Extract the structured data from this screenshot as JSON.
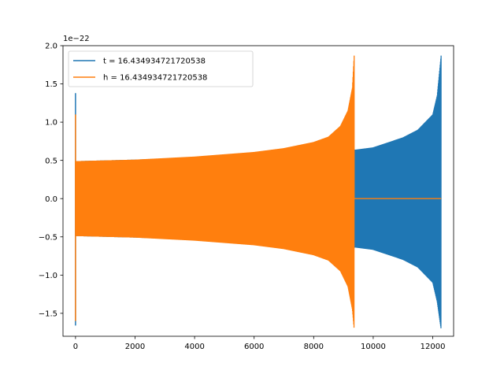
{
  "chart_data": {
    "type": "line",
    "title": "",
    "xlabel": "",
    "ylabel": "",
    "y_offset_label": "1e−22",
    "xlim": [
      -420,
      12700
    ],
    "ylim": [
      -1.8,
      2.0
    ],
    "x_ticks": [
      0,
      2000,
      4000,
      6000,
      8000,
      10000,
      12000
    ],
    "x_tick_labels": [
      "0",
      "2000",
      "4000",
      "6000",
      "8000",
      "10000",
      "12000"
    ],
    "y_ticks": [
      -1.5,
      -1.0,
      -0.5,
      0.0,
      0.5,
      1.0,
      1.5,
      2.0
    ],
    "y_tick_labels": [
      "−1.5",
      "−1.0",
      "−0.5",
      "0.0",
      "0.5",
      "1.0",
      "1.5",
      "2.0"
    ],
    "grid": false,
    "legend_placement": "upper-left",
    "series": [
      {
        "name": "t = 16.434934721720538",
        "color": "#1f77b4",
        "description": "oscillating chirp signal, amplitude envelope in units of 1e-22",
        "x_start": 0,
        "x_end": 12280,
        "initial_spike": {
          "x": 0,
          "max": 1.38,
          "min": -1.66
        },
        "envelope": {
          "x": [
            0,
            2000,
            4000,
            6000,
            8000,
            9000,
            9400,
            10000,
            11000,
            11500,
            12000,
            12150,
            12280
          ],
          "upper": [
            0.49,
            0.51,
            0.54,
            0.58,
            0.64,
            0.66,
            0.64,
            0.67,
            0.8,
            0.9,
            1.1,
            1.35,
            1.87
          ],
          "lower": [
            -0.49,
            -0.51,
            -0.54,
            -0.58,
            -0.64,
            -0.66,
            -0.64,
            -0.67,
            -0.8,
            -0.9,
            -1.1,
            -1.35,
            -1.71
          ]
        }
      },
      {
        "name": "h = 16.434934721720538",
        "color": "#ff7f0e",
        "description": "oscillating chirp signal ending near x=9360, then flat at 0",
        "x_start": 0,
        "x_end": 12280,
        "chirp_end": 9360,
        "initial_spike": {
          "x": 0,
          "max": 1.1,
          "min": -1.6
        },
        "envelope": {
          "x": [
            0,
            1000,
            2000,
            3000,
            4000,
            5000,
            6000,
            7000,
            8000,
            8500,
            8900,
            9150,
            9300,
            9360
          ],
          "upper": [
            0.49,
            0.5,
            0.51,
            0.53,
            0.55,
            0.58,
            0.61,
            0.66,
            0.74,
            0.81,
            0.95,
            1.15,
            1.45,
            1.87
          ],
          "lower": [
            -0.49,
            -0.5,
            -0.51,
            -0.53,
            -0.55,
            -0.58,
            -0.61,
            -0.66,
            -0.74,
            -0.81,
            -0.95,
            -1.15,
            -1.45,
            -1.71
          ]
        }
      }
    ]
  }
}
